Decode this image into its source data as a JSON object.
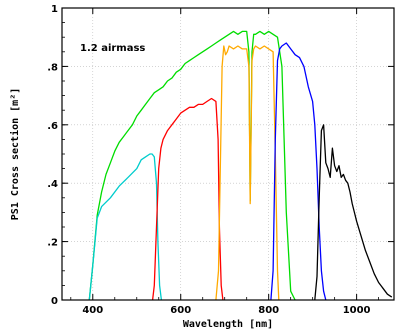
{
  "chart_data": {
    "type": "line",
    "title": "",
    "xlabel": "Wavelength [nm]",
    "ylabel": "PS1 Cross section [m²]",
    "annotation": "1.2 airmass",
    "xlim": [
      330,
      1085
    ],
    "ylim": [
      0,
      1
    ],
    "x_ticks": [
      {
        "value": 400,
        "label": "400"
      },
      {
        "value": 600,
        "label": "600"
      },
      {
        "value": 800,
        "label": "800"
      },
      {
        "value": 1000,
        "label": "1000"
      }
    ],
    "y_ticks": [
      {
        "value": 0,
        "label": "0"
      },
      {
        "value": 0.2,
        "label": ".2"
      },
      {
        "value": 0.4,
        "label": ".4"
      },
      {
        "value": 0.6,
        "label": ".6"
      },
      {
        "value": 0.8,
        "label": ".8"
      },
      {
        "value": 1,
        "label": "1"
      }
    ],
    "grid": "dotted, at major ticks",
    "series": [
      {
        "color": "#00dd00",
        "x": [
          392,
          400,
          410,
          420,
          430,
          440,
          450,
          460,
          470,
          480,
          490,
          500,
          510,
          520,
          530,
          540,
          550,
          560,
          570,
          580,
          590,
          600,
          610,
          620,
          630,
          640,
          650,
          660,
          670,
          680,
          690,
          700,
          710,
          720,
          730,
          740,
          750,
          755,
          758,
          762,
          766,
          770,
          780,
          790,
          800,
          810,
          820,
          830,
          840,
          850,
          860
        ],
        "y": [
          0,
          0.12,
          0.29,
          0.37,
          0.43,
          0.47,
          0.51,
          0.54,
          0.56,
          0.58,
          0.6,
          0.63,
          0.65,
          0.67,
          0.69,
          0.71,
          0.72,
          0.73,
          0.75,
          0.76,
          0.78,
          0.79,
          0.81,
          0.82,
          0.83,
          0.84,
          0.85,
          0.86,
          0.87,
          0.88,
          0.89,
          0.9,
          0.91,
          0.92,
          0.91,
          0.92,
          0.92,
          0.85,
          0.34,
          0.85,
          0.91,
          0.91,
          0.92,
          0.91,
          0.92,
          0.91,
          0.9,
          0.8,
          0.3,
          0.03,
          0
        ]
      },
      {
        "color": "#00cccc",
        "x": [
          392,
          400,
          410,
          420,
          440,
          460,
          480,
          500,
          510,
          520,
          530,
          535,
          540,
          545,
          548,
          552,
          556
        ],
        "y": [
          0,
          0.12,
          0.28,
          0.32,
          0.35,
          0.39,
          0.42,
          0.45,
          0.48,
          0.49,
          0.5,
          0.5,
          0.49,
          0.4,
          0.2,
          0.05,
          0
        ]
      },
      {
        "color": "#ff0000",
        "x": [
          536,
          540,
          545,
          550,
          555,
          560,
          570,
          580,
          590,
          600,
          610,
          620,
          630,
          640,
          650,
          660,
          670,
          680,
          685,
          688,
          692,
          696
        ],
        "y": [
          0,
          0.05,
          0.25,
          0.45,
          0.52,
          0.55,
          0.58,
          0.6,
          0.62,
          0.64,
          0.65,
          0.66,
          0.66,
          0.67,
          0.67,
          0.68,
          0.69,
          0.68,
          0.55,
          0.25,
          0.05,
          0
        ]
      },
      {
        "color": "#ffaa00",
        "x": [
          680,
          686,
          690,
          694,
          698,
          702,
          706,
          710,
          720,
          730,
          740,
          750,
          755,
          758,
          762,
          766,
          770,
          780,
          790,
          800,
          810,
          815,
          820,
          823
        ],
        "y": [
          0,
          0.1,
          0.45,
          0.8,
          0.87,
          0.84,
          0.85,
          0.87,
          0.86,
          0.87,
          0.86,
          0.86,
          0.8,
          0.33,
          0.82,
          0.86,
          0.87,
          0.86,
          0.87,
          0.86,
          0.85,
          0.5,
          0.1,
          0
        ]
      },
      {
        "color": "#0000ff",
        "x": [
          805,
          810,
          815,
          820,
          825,
          830,
          840,
          850,
          860,
          870,
          880,
          890,
          900,
          905,
          910,
          915,
          920,
          925,
          930
        ],
        "y": [
          0,
          0.1,
          0.55,
          0.82,
          0.86,
          0.87,
          0.88,
          0.86,
          0.84,
          0.83,
          0.8,
          0.73,
          0.68,
          0.6,
          0.45,
          0.25,
          0.1,
          0.03,
          0
        ]
      },
      {
        "color": "#000000",
        "x": [
          905,
          910,
          915,
          920,
          925,
          930,
          935,
          940,
          945,
          950,
          955,
          960,
          965,
          970,
          975,
          980,
          985,
          990,
          995,
          1000,
          1010,
          1020,
          1030,
          1040,
          1050,
          1060,
          1070,
          1080
        ],
        "y": [
          0,
          0.08,
          0.35,
          0.58,
          0.6,
          0.47,
          0.45,
          0.42,
          0.52,
          0.46,
          0.44,
          0.46,
          0.42,
          0.43,
          0.41,
          0.4,
          0.37,
          0.33,
          0.3,
          0.27,
          0.22,
          0.17,
          0.13,
          0.09,
          0.06,
          0.04,
          0.02,
          0.01
        ]
      }
    ]
  }
}
